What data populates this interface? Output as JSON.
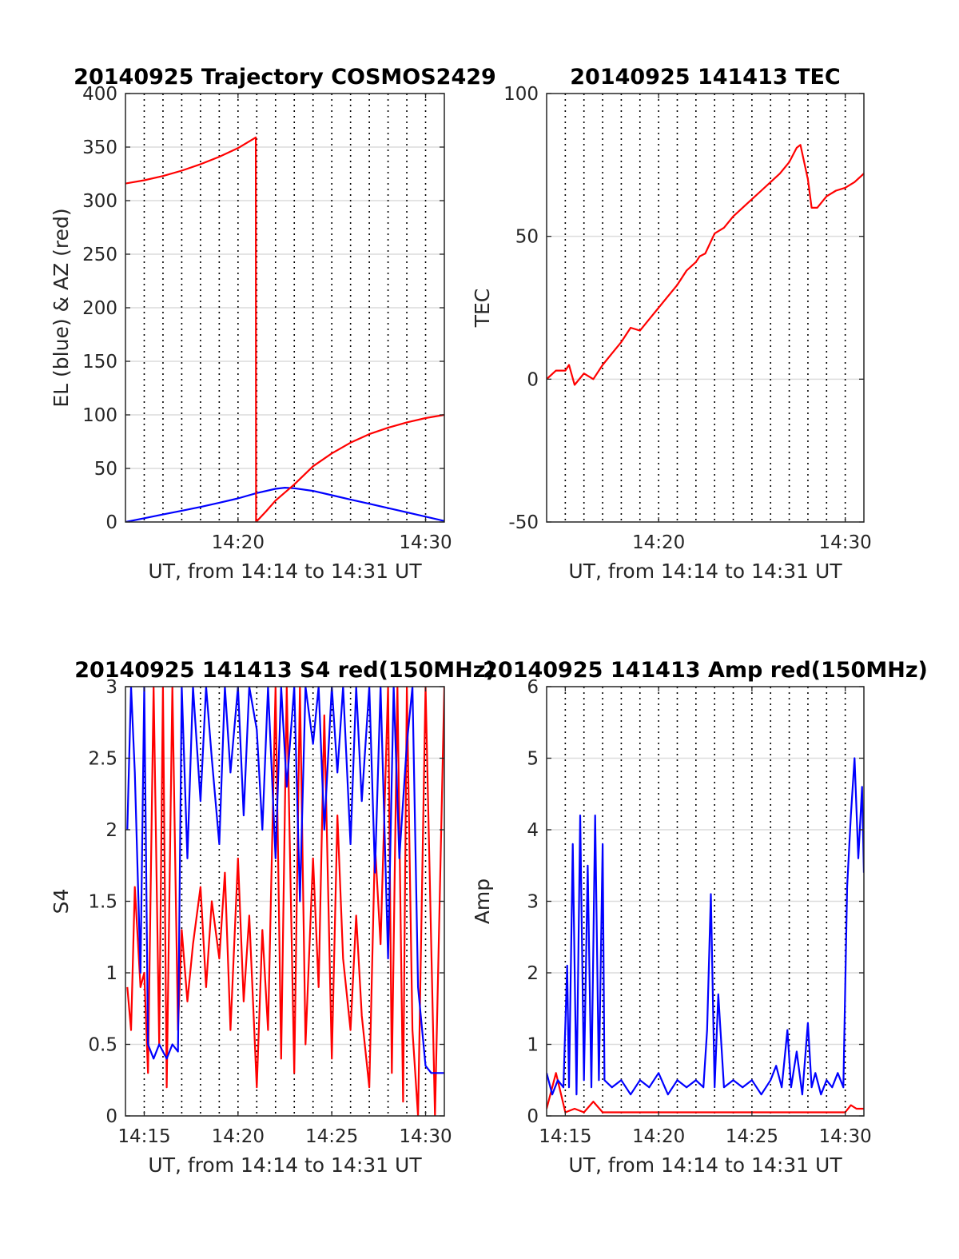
{
  "chart_data": [
    {
      "type": "line",
      "title": "20140925 Trajectory COSMOS2429",
      "xlabel": "UT, from 14:14 to 14:31 UT",
      "ylabel": "EL (blue) & AZ (red)",
      "xlim": [
        14.0,
        31.0
      ],
      "ylim": [
        0,
        400
      ],
      "xticks": [
        20,
        30
      ],
      "xticklabels": [
        "14:20",
        "14:30"
      ],
      "yticks": [
        0,
        50,
        100,
        150,
        200,
        250,
        300,
        350,
        400
      ],
      "yticklabels": [
        "0",
        "50",
        "100",
        "150",
        "200",
        "250",
        "300",
        "350",
        "400"
      ],
      "vgrid_x": [
        15,
        16,
        17,
        18,
        19,
        20,
        21,
        22,
        23,
        24,
        25,
        26,
        27,
        28,
        29,
        30
      ],
      "grid": true,
      "series": [
        {
          "color": "#0000ff",
          "x": [
            14.0,
            15.0,
            16.0,
            17.0,
            18.0,
            19.0,
            20.0,
            21.0,
            22.0,
            22.5,
            23.0,
            24.0,
            25.0,
            26.0,
            27.0,
            28.0,
            29.0,
            30.0,
            31.0
          ],
          "y": [
            0,
            3.5,
            7,
            10.5,
            14,
            18,
            22,
            27,
            31,
            32,
            31.5,
            29,
            25,
            21,
            17,
            13,
            9,
            5,
            1
          ]
        },
        {
          "color": "#ff0000",
          "x": [
            14.0,
            15.0,
            16.0,
            17.0,
            18.0,
            19.0,
            20.0,
            20.95,
            20.96,
            21.5,
            22.0,
            23.0,
            24.0,
            25.0,
            26.0,
            27.0,
            28.0,
            29.0,
            30.0,
            31.0
          ],
          "y": [
            316,
            319,
            323,
            328,
            334,
            341,
            349,
            359,
            0,
            10,
            20,
            35,
            52,
            64,
            74,
            82,
            88,
            93,
            97,
            100
          ]
        }
      ]
    },
    {
      "type": "line",
      "title": "20140925 141413 TEC",
      "xlabel": "UT, from 14:14 to 14:31 UT",
      "ylabel": "TEC",
      "xlim": [
        14.0,
        31.0
      ],
      "ylim": [
        -50,
        100
      ],
      "xticks": [
        20,
        30
      ],
      "xticklabels": [
        "14:20",
        "14:30"
      ],
      "yticks": [
        -50,
        0,
        50,
        100
      ],
      "yticklabels": [
        "-50",
        "0",
        "50",
        "100"
      ],
      "vgrid_x": [
        15,
        16,
        17,
        18,
        19,
        20,
        21,
        22,
        23,
        24,
        25,
        26,
        27,
        28,
        29,
        30
      ],
      "grid": true,
      "series": [
        {
          "color": "#ff0000",
          "x": [
            14.0,
            14.5,
            15.0,
            15.2,
            15.5,
            16.0,
            16.5,
            17.0,
            17.5,
            18.0,
            18.5,
            19.0,
            19.5,
            20.0,
            20.5,
            21.0,
            21.5,
            22.0,
            22.2,
            22.5,
            23.0,
            23.5,
            24.0,
            24.5,
            25.0,
            25.5,
            26.0,
            26.5,
            27.0,
            27.4,
            27.6,
            28.0,
            28.2,
            28.5,
            29.0,
            29.5,
            30.0,
            30.5,
            31.0
          ],
          "y": [
            0,
            3,
            3,
            5,
            -2,
            2,
            0,
            5,
            9,
            13,
            18,
            17,
            21,
            25,
            29,
            33,
            38,
            41,
            43,
            44,
            51,
            53,
            57,
            60,
            63,
            66,
            69,
            72,
            76,
            81,
            82,
            70,
            60,
            60,
            64,
            66,
            67,
            69,
            72
          ]
        }
      ]
    },
    {
      "type": "line",
      "title": "20140925 141413 S4 red(150MHz)",
      "xlabel": "UT, from 14:14 to 14:31 UT",
      "ylabel": "S4",
      "xlim": [
        14.0,
        31.0
      ],
      "ylim": [
        0,
        3
      ],
      "xticks": [
        15,
        20,
        25,
        30
      ],
      "xticklabels": [
        "14:15",
        "14:20",
        "14:25",
        "14:30"
      ],
      "yticks": [
        0,
        0.5,
        1,
        1.5,
        2,
        2.5,
        3
      ],
      "yticklabels": [
        "0",
        "0.5",
        "1",
        "1.5",
        "2",
        "2.5",
        "3"
      ],
      "vgrid_x": [
        15,
        16,
        17,
        18,
        19,
        20,
        21,
        22,
        23,
        24,
        25,
        26,
        27,
        28,
        29,
        30
      ],
      "grid": true,
      "series": [
        {
          "color": "#ff0000",
          "x": [
            14.1,
            14.3,
            14.5,
            14.8,
            15.0,
            15.2,
            15.5,
            15.8,
            16.0,
            16.2,
            16.5,
            16.8,
            17.0,
            17.3,
            17.6,
            18.0,
            18.3,
            18.6,
            19.0,
            19.3,
            19.6,
            20.0,
            20.3,
            20.6,
            21.0,
            21.3,
            21.6,
            22.0,
            22.3,
            22.6,
            23.0,
            23.3,
            23.6,
            24.0,
            24.3,
            24.6,
            25.0,
            25.3,
            25.6,
            26.0,
            26.3,
            26.6,
            27.0,
            27.3,
            27.6,
            28.0,
            28.2,
            28.5,
            28.8,
            29.0,
            29.3,
            29.6,
            30.0,
            30.5,
            31.0
          ],
          "y": [
            0.9,
            0.6,
            1.6,
            0.9,
            1.0,
            0.3,
            3.0,
            0.5,
            3.0,
            0.2,
            3.0,
            0.6,
            1.3,
            0.8,
            1.2,
            1.6,
            0.9,
            1.5,
            1.1,
            1.7,
            0.6,
            1.8,
            0.8,
            1.4,
            0.2,
            1.3,
            0.6,
            3.0,
            0.4,
            3.0,
            0.3,
            3.0,
            0.5,
            1.8,
            0.9,
            2.8,
            0.4,
            2.1,
            1.1,
            0.6,
            1.4,
            0.7,
            0.2,
            1.9,
            1.2,
            3.0,
            0.3,
            3.0,
            0.1,
            3.0,
            0.6,
            0.0,
            3.0,
            0.0,
            3.0
          ]
        },
        {
          "color": "#0000ff",
          "x": [
            14.1,
            14.3,
            14.5,
            14.8,
            15.0,
            15.2,
            15.5,
            15.8,
            16.0,
            16.2,
            16.5,
            16.8,
            17.0,
            17.3,
            17.6,
            18.0,
            18.3,
            18.6,
            19.0,
            19.3,
            19.6,
            20.0,
            20.3,
            20.6,
            21.0,
            21.3,
            21.6,
            22.0,
            22.3,
            22.6,
            23.0,
            23.3,
            23.6,
            24.0,
            24.3,
            24.6,
            25.0,
            25.3,
            25.6,
            26.0,
            26.3,
            26.6,
            27.0,
            27.3,
            27.6,
            28.0,
            28.3,
            28.6,
            29.0,
            29.3,
            29.6,
            30.0,
            30.3,
            30.6,
            31.0
          ],
          "y": [
            2.0,
            3.0,
            2.4,
            1.0,
            3.0,
            0.5,
            0.4,
            0.5,
            0.45,
            0.4,
            0.5,
            0.45,
            3.0,
            1.8,
            3.0,
            2.2,
            3.0,
            2.5,
            1.9,
            3.0,
            2.4,
            3.0,
            2.1,
            3.0,
            2.7,
            2.0,
            3.0,
            1.8,
            3.0,
            2.3,
            3.0,
            1.5,
            3.0,
            2.6,
            3.0,
            2.0,
            3.0,
            2.4,
            3.0,
            1.9,
            3.0,
            2.2,
            3.0,
            1.7,
            3.0,
            1.1,
            3.0,
            1.8,
            2.6,
            3.0,
            0.9,
            0.35,
            0.3,
            0.3,
            0.3
          ]
        }
      ]
    },
    {
      "type": "line",
      "title": "20140925 141413 Amp red(150MHz)",
      "xlabel": "UT, from 14:14 to 14:31 UT",
      "ylabel": "Amp",
      "xlim": [
        14.0,
        31.0
      ],
      "ylim": [
        0,
        6
      ],
      "xticks": [
        15,
        20,
        25,
        30
      ],
      "xticklabels": [
        "14:15",
        "14:20",
        "14:25",
        "14:30"
      ],
      "yticks": [
        0,
        1,
        2,
        3,
        4,
        5,
        6
      ],
      "yticklabels": [
        "0",
        "1",
        "2",
        "3",
        "4",
        "5",
        "6"
      ],
      "vgrid_x": [
        15,
        16,
        17,
        18,
        19,
        20,
        21,
        22,
        23,
        24,
        25,
        26,
        27,
        28,
        29,
        30
      ],
      "grid": true,
      "series": [
        {
          "color": "#ff0000",
          "x": [
            14.0,
            14.5,
            15.0,
            15.5,
            16.0,
            16.5,
            17.0,
            18.0,
            20.0,
            22.0,
            24.0,
            26.0,
            28.0,
            29.0,
            30.0,
            30.3,
            30.6,
            31.0
          ],
          "y": [
            0.1,
            0.6,
            0.05,
            0.1,
            0.05,
            0.2,
            0.05,
            0.05,
            0.05,
            0.05,
            0.05,
            0.05,
            0.05,
            0.05,
            0.05,
            0.15,
            0.1,
            0.1
          ]
        },
        {
          "color": "#0000ff",
          "x": [
            14.0,
            14.3,
            14.6,
            14.9,
            15.1,
            15.2,
            15.4,
            15.6,
            15.8,
            16.0,
            16.2,
            16.4,
            16.6,
            16.8,
            17.0,
            17.1,
            17.5,
            18.0,
            18.5,
            19.0,
            19.5,
            20.0,
            20.5,
            21.0,
            21.5,
            22.0,
            22.4,
            22.6,
            22.8,
            23.0,
            23.2,
            23.5,
            24.0,
            24.5,
            25.0,
            25.5,
            26.0,
            26.3,
            26.6,
            26.9,
            27.1,
            27.4,
            27.7,
            28.0,
            28.2,
            28.4,
            28.7,
            29.0,
            29.3,
            29.6,
            29.9,
            30.1,
            30.3,
            30.5,
            30.7,
            30.9,
            31.0
          ],
          "y": [
            0.6,
            0.3,
            0.5,
            0.4,
            2.1,
            0.4,
            3.8,
            0.3,
            4.2,
            0.5,
            3.5,
            0.4,
            4.2,
            0.5,
            3.8,
            0.5,
            0.4,
            0.5,
            0.3,
            0.5,
            0.4,
            0.6,
            0.3,
            0.5,
            0.4,
            0.5,
            0.4,
            1.2,
            3.1,
            0.4,
            1.7,
            0.4,
            0.5,
            0.4,
            0.5,
            0.3,
            0.5,
            0.7,
            0.4,
            1.2,
            0.4,
            0.9,
            0.3,
            1.3,
            0.4,
            0.6,
            0.3,
            0.5,
            0.4,
            0.6,
            0.4,
            3.2,
            4.2,
            5.0,
            3.6,
            4.6,
            3.4
          ]
        }
      ]
    }
  ]
}
